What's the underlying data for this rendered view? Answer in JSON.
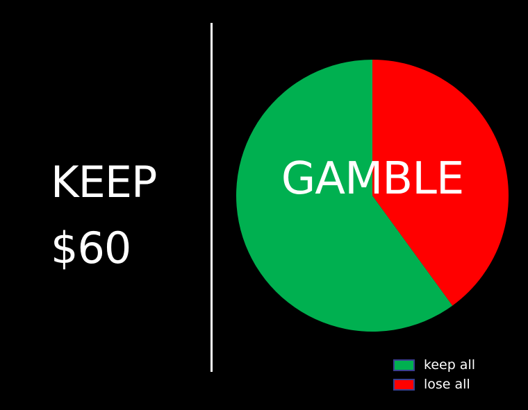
{
  "keep": {
    "word": "KEEP",
    "amount": "$60"
  },
  "gamble": {
    "label": "GAMBLE"
  },
  "colors": {
    "background": "#000000",
    "text": "#ffffff",
    "keep_all": "#00b050",
    "lose_all": "#ff0000"
  },
  "chart_data": {
    "type": "pie",
    "categories": [
      "keep all",
      "lose all"
    ],
    "values": [
      60,
      40
    ],
    "colors": [
      "#00b050",
      "#ff0000"
    ],
    "start": "12 o'clock",
    "direction": "lose all clockwise from top",
    "legend": "bottom-right"
  }
}
